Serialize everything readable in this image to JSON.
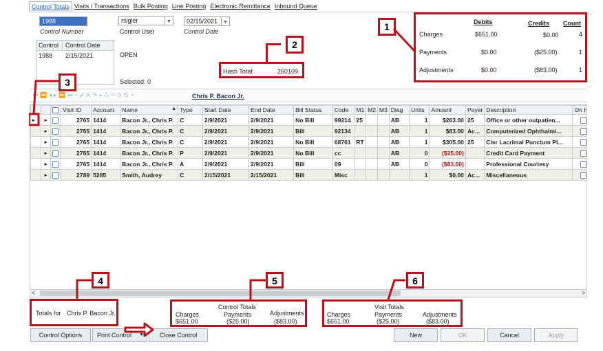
{
  "tabs": [
    "Control Totals",
    "Visits / Transactions",
    "Bulk Posting",
    "Line Posting",
    "Electronic Remittance",
    "Inbound Queue"
  ],
  "control": {
    "number": "1988",
    "number_label": "Control Number",
    "user": "rsigler",
    "user_label": "Control User",
    "date": "02/15/2021",
    "date_label": "Control Date",
    "list_headers": [
      "Control",
      "Control Date"
    ],
    "list_row": [
      "1988",
      "2/15/2021"
    ],
    "status": "OPEN",
    "selected": "Selected: 0",
    "hash_label": "Hash Total:",
    "hash_value": "260109"
  },
  "totals_box": {
    "headers": [
      "Debits",
      "Credits",
      "Count"
    ],
    "rows": [
      {
        "label": "Charges",
        "debits": "$651.00",
        "credits": "$0.00",
        "count": "4"
      },
      {
        "label": "Payments",
        "debits": "$0.00",
        "credits": "($25.00)",
        "count": "1"
      },
      {
        "label": "Adjustments",
        "debits": "$0.00",
        "credits": "($83.00)",
        "count": "1"
      }
    ]
  },
  "patient_link": "Chris P. Bacon Jr.",
  "grid": {
    "headers": [
      "",
      "",
      "",
      "Visit ID",
      "Account",
      "Name",
      "Type",
      "Start Date",
      "End Date",
      "Bill Status",
      "Code",
      "M1",
      "M2",
      "M3",
      "Diag",
      "Units",
      "Amount",
      "Payer",
      "Description",
      "On Hol"
    ],
    "rows": [
      [
        "2765",
        "1414",
        "Bacon Jr., Chris P.",
        "C",
        "2/9/2021",
        "2/9/2021",
        "No Bill",
        "99214",
        "25",
        "",
        "",
        "AB",
        "1",
        "$263.00",
        "25",
        "Office or other outpatien..."
      ],
      [
        "2765",
        "1414",
        "Bacon Jr., Chris P.",
        "C",
        "2/9/2021",
        "2/9/2021",
        "Bill",
        "92134",
        "",
        "",
        "",
        "AB",
        "1",
        "$83.00",
        "Ac...",
        "Computerized Ophthalmi..."
      ],
      [
        "2765",
        "1414",
        "Bacon Jr., Chris P.",
        "C",
        "2/9/2021",
        "2/9/2021",
        "No Bill",
        "68761",
        "RT",
        "",
        "",
        "AB",
        "1",
        "$305.00",
        "25",
        "Clsr Lacrimal Punctum Pl..."
      ],
      [
        "2765",
        "1414",
        "Bacon Jr., Chris P.",
        "P",
        "2/9/2021",
        "2/9/2021",
        "No Bill",
        "cc",
        "",
        "",
        "",
        "AB",
        "0",
        "($25.00)",
        "",
        "Credit Card Payment"
      ],
      [
        "2765",
        "1414",
        "Bacon Jr., Chris P.",
        "A",
        "2/9/2021",
        "2/9/2021",
        "Bill",
        "09",
        "",
        "",
        "",
        "AB",
        "0",
        "($83.00)",
        "",
        "Professional Courtesy"
      ],
      [
        "2789",
        "5285",
        "Smith, Audrey",
        "C",
        "2/15/2021",
        "2/15/2021",
        "Bill",
        "Misc",
        "",
        "",
        "",
        "",
        "1",
        "$0.00",
        "Ac...",
        "Miscellaneous"
      ]
    ]
  },
  "footer": {
    "totals_for_label": "Totals for",
    "totals_for_name": "Chris P. Bacon Jr.",
    "control_totals_title": "Control Totals",
    "visit_totals_title": "Visit Totals",
    "sum_labels": [
      "Charges",
      "Payments",
      "Adjustments"
    ],
    "control_values": [
      "$651.00",
      "($25.00)",
      "($83.00)"
    ],
    "visit_values": [
      "$651.00",
      "($25.00)",
      "($83.00)"
    ]
  },
  "buttons": {
    "control_options": "Control Options",
    "print_control": "Print Control",
    "close_control": "Close Control",
    "new": "New",
    "ok": "OK",
    "cancel": "Cancel",
    "apply": "Apply"
  },
  "badges": [
    "1",
    "2",
    "3",
    "4",
    "5",
    "6"
  ],
  "colors": {
    "annotation_red": "#b5121b",
    "selection_blue": "#3b70c5",
    "negative_red": "#d01010"
  }
}
